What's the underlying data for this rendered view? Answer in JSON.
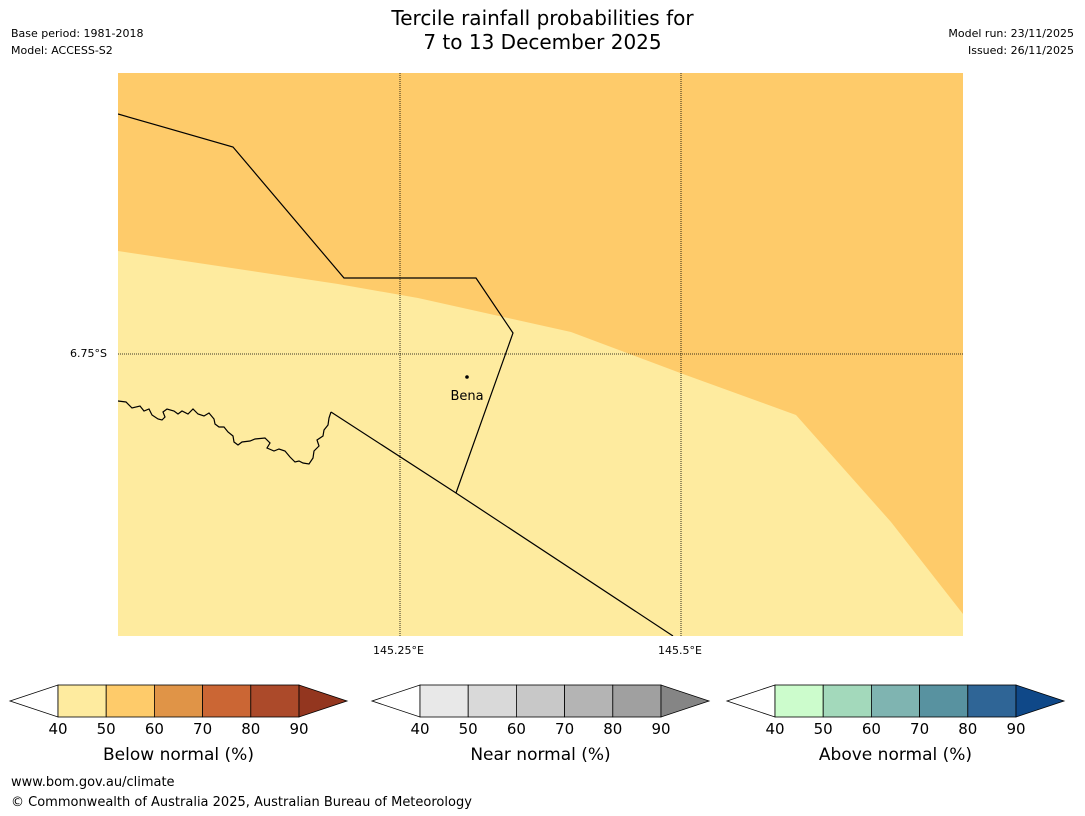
{
  "title_line1": "Tercile rainfall probabilities for",
  "title_line2": "7 to 13 December 2025",
  "meta": {
    "base_period": "Base period: 1981-2018",
    "model": "Model: ACCESS-S2",
    "model_run": "Model run: 23/11/2025",
    "issued": "Issued: 26/11/2025"
  },
  "map": {
    "lat_label": "6.75°S",
    "lon_labels": [
      "145.25°E",
      "145.5°E"
    ],
    "place_label": "Bena"
  },
  "colors": {
    "below_50": "#fecb6a",
    "below_40": "#feeb9f"
  },
  "legends": [
    {
      "label": "Below normal (%)",
      "ticks": [
        "40",
        "50",
        "60",
        "70",
        "80",
        "90"
      ],
      "colors": [
        "#ffffff",
        "#feeb9f",
        "#fecb6a",
        "#e09447",
        "#cb6634",
        "#ac4a2a",
        "#93361f"
      ]
    },
    {
      "label": "Near normal (%)",
      "ticks": [
        "40",
        "50",
        "60",
        "70",
        "80",
        "90"
      ],
      "colors": [
        "#ffffff",
        "#e8e8e8",
        "#d9d9d9",
        "#c8c8c8",
        "#b4b4b4",
        "#a0a0a0",
        "#858585"
      ]
    },
    {
      "label": "Above normal (%)",
      "ticks": [
        "40",
        "50",
        "60",
        "70",
        "80",
        "90"
      ],
      "colors": [
        "#ffffff",
        "#ccfccc",
        "#a3d9bb",
        "#7fb4b1",
        "#5892a0",
        "#2f6596",
        "#0f4888"
      ]
    }
  ],
  "footer": {
    "url": "www.bom.gov.au/climate",
    "copyright": "© Commonwealth of Australia 2025, Australian Bureau of Meteorology"
  }
}
